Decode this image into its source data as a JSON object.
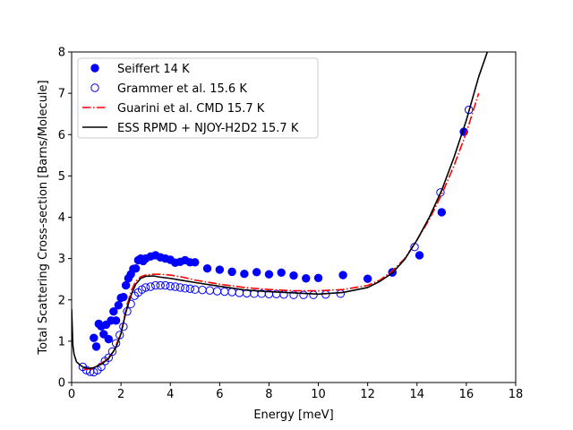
{
  "chart_data": {
    "type": "scatter",
    "xlabel": "Energy [meV]",
    "ylabel": "Total Scattering Cross-section [Barns/Molecule]",
    "xlim": [
      0,
      18
    ],
    "ylim": [
      0,
      8
    ],
    "xticks": [
      0,
      2,
      4,
      6,
      8,
      10,
      12,
      14,
      16,
      18
    ],
    "yticks": [
      0,
      1,
      2,
      3,
      4,
      5,
      6,
      7,
      8
    ],
    "legend_position": "top-left",
    "grid": false,
    "series": [
      {
        "name": "Seiffert 14 K",
        "kind": "filled-circles",
        "color": "#0000ff",
        "x": [
          0.9,
          1.0,
          1.1,
          1.2,
          1.3,
          1.4,
          1.5,
          1.6,
          1.7,
          1.8,
          1.9,
          2.0,
          2.1,
          2.2,
          2.3,
          2.4,
          2.5,
          2.6,
          2.7,
          2.8,
          2.9,
          3.0,
          3.2,
          3.4,
          3.6,
          3.8,
          4.0,
          4.2,
          4.4,
          4.6,
          4.8,
          5.0,
          5.5,
          6.0,
          6.5,
          7.0,
          7.5,
          8.0,
          8.5,
          9.0,
          9.5,
          10.0,
          11.0,
          12.0,
          13.0,
          14.1,
          15.0,
          15.9
        ],
        "y": [
          1.08,
          0.87,
          1.42,
          1.36,
          1.17,
          1.4,
          1.05,
          1.5,
          1.72,
          1.5,
          1.87,
          2.05,
          2.07,
          2.35,
          2.52,
          2.62,
          2.75,
          2.76,
          2.96,
          3.0,
          2.94,
          3.0,
          3.05,
          3.08,
          3.03,
          3.0,
          2.97,
          2.9,
          2.92,
          2.96,
          2.91,
          2.91,
          2.76,
          2.73,
          2.68,
          2.63,
          2.67,
          2.62,
          2.66,
          2.59,
          2.52,
          2.53,
          2.6,
          2.51,
          2.66,
          3.08,
          4.12,
          6.07
        ]
      },
      {
        "name": "Grammer et al. 15.6 K",
        "kind": "open-circles",
        "color": "#0000ff",
        "x": [
          0.45,
          0.6,
          0.75,
          0.9,
          1.05,
          1.2,
          1.35,
          1.5,
          1.65,
          1.8,
          1.95,
          2.1,
          2.25,
          2.4,
          2.55,
          2.7,
          2.85,
          3.0,
          3.2,
          3.4,
          3.6,
          3.8,
          4.0,
          4.2,
          4.4,
          4.6,
          4.8,
          5.0,
          5.3,
          5.6,
          5.9,
          6.2,
          6.5,
          6.8,
          7.1,
          7.4,
          7.7,
          8.0,
          8.3,
          8.6,
          9.0,
          9.4,
          9.8,
          10.3,
          10.9,
          13.0,
          13.9,
          14.95,
          16.1
        ],
        "y": [
          0.38,
          0.3,
          0.26,
          0.25,
          0.3,
          0.38,
          0.52,
          0.6,
          0.75,
          0.95,
          1.15,
          1.35,
          1.72,
          1.9,
          2.1,
          2.18,
          2.25,
          2.3,
          2.32,
          2.35,
          2.35,
          2.35,
          2.33,
          2.32,
          2.3,
          2.28,
          2.27,
          2.25,
          2.24,
          2.23,
          2.21,
          2.2,
          2.19,
          2.17,
          2.16,
          2.15,
          2.15,
          2.14,
          2.14,
          2.13,
          2.12,
          2.12,
          2.12,
          2.13,
          2.15,
          2.67,
          3.28,
          4.6,
          6.6
        ]
      },
      {
        "name": "Guarini et al. CMD 15.7 K",
        "kind": "dashdot-line",
        "color": "#ff0000",
        "x": [
          0.5,
          0.8,
          1.1,
          1.4,
          1.7,
          2.0,
          2.2,
          2.4,
          2.6,
          2.8,
          3.0,
          3.3,
          3.6,
          4.0,
          4.5,
          5.0,
          6.0,
          7.0,
          8.0,
          9.0,
          10.0,
          11.0,
          12.0,
          12.5,
          13.0,
          13.5,
          14.0,
          14.5,
          15.0,
          15.5,
          16.0,
          16.5
        ],
        "y": [
          0.32,
          0.33,
          0.42,
          0.55,
          0.75,
          1.2,
          1.75,
          2.2,
          2.45,
          2.56,
          2.6,
          2.62,
          2.62,
          2.6,
          2.55,
          2.48,
          2.38,
          2.3,
          2.25,
          2.22,
          2.22,
          2.25,
          2.35,
          2.48,
          2.7,
          3.0,
          3.45,
          3.95,
          4.55,
          5.25,
          6.05,
          7.0
        ]
      },
      {
        "name": "ESS RPMD + NJOY-H2D2 15.7 K",
        "kind": "solid-line",
        "color": "#000000",
        "x": [
          0.0,
          0.05,
          0.1,
          0.2,
          0.35,
          0.5,
          0.7,
          0.9,
          1.2,
          1.5,
          1.8,
          2.0,
          2.2,
          2.4,
          2.6,
          2.8,
          3.0,
          3.3,
          3.6,
          4.0,
          4.5,
          5.0,
          6.0,
          7.0,
          8.0,
          9.0,
          10.0,
          11.0,
          12.0,
          12.5,
          13.0,
          13.5,
          14.0,
          14.5,
          15.0,
          15.5,
          16.0,
          16.5,
          16.85
        ],
        "y": [
          1.78,
          0.9,
          0.68,
          0.5,
          0.42,
          0.36,
          0.34,
          0.36,
          0.44,
          0.58,
          0.85,
          1.18,
          1.7,
          2.1,
          2.38,
          2.52,
          2.57,
          2.58,
          2.55,
          2.52,
          2.47,
          2.42,
          2.33,
          2.24,
          2.2,
          2.17,
          2.14,
          2.18,
          2.3,
          2.45,
          2.65,
          2.98,
          3.45,
          4.0,
          4.65,
          5.45,
          6.35,
          7.4,
          8.0
        ]
      }
    ]
  }
}
